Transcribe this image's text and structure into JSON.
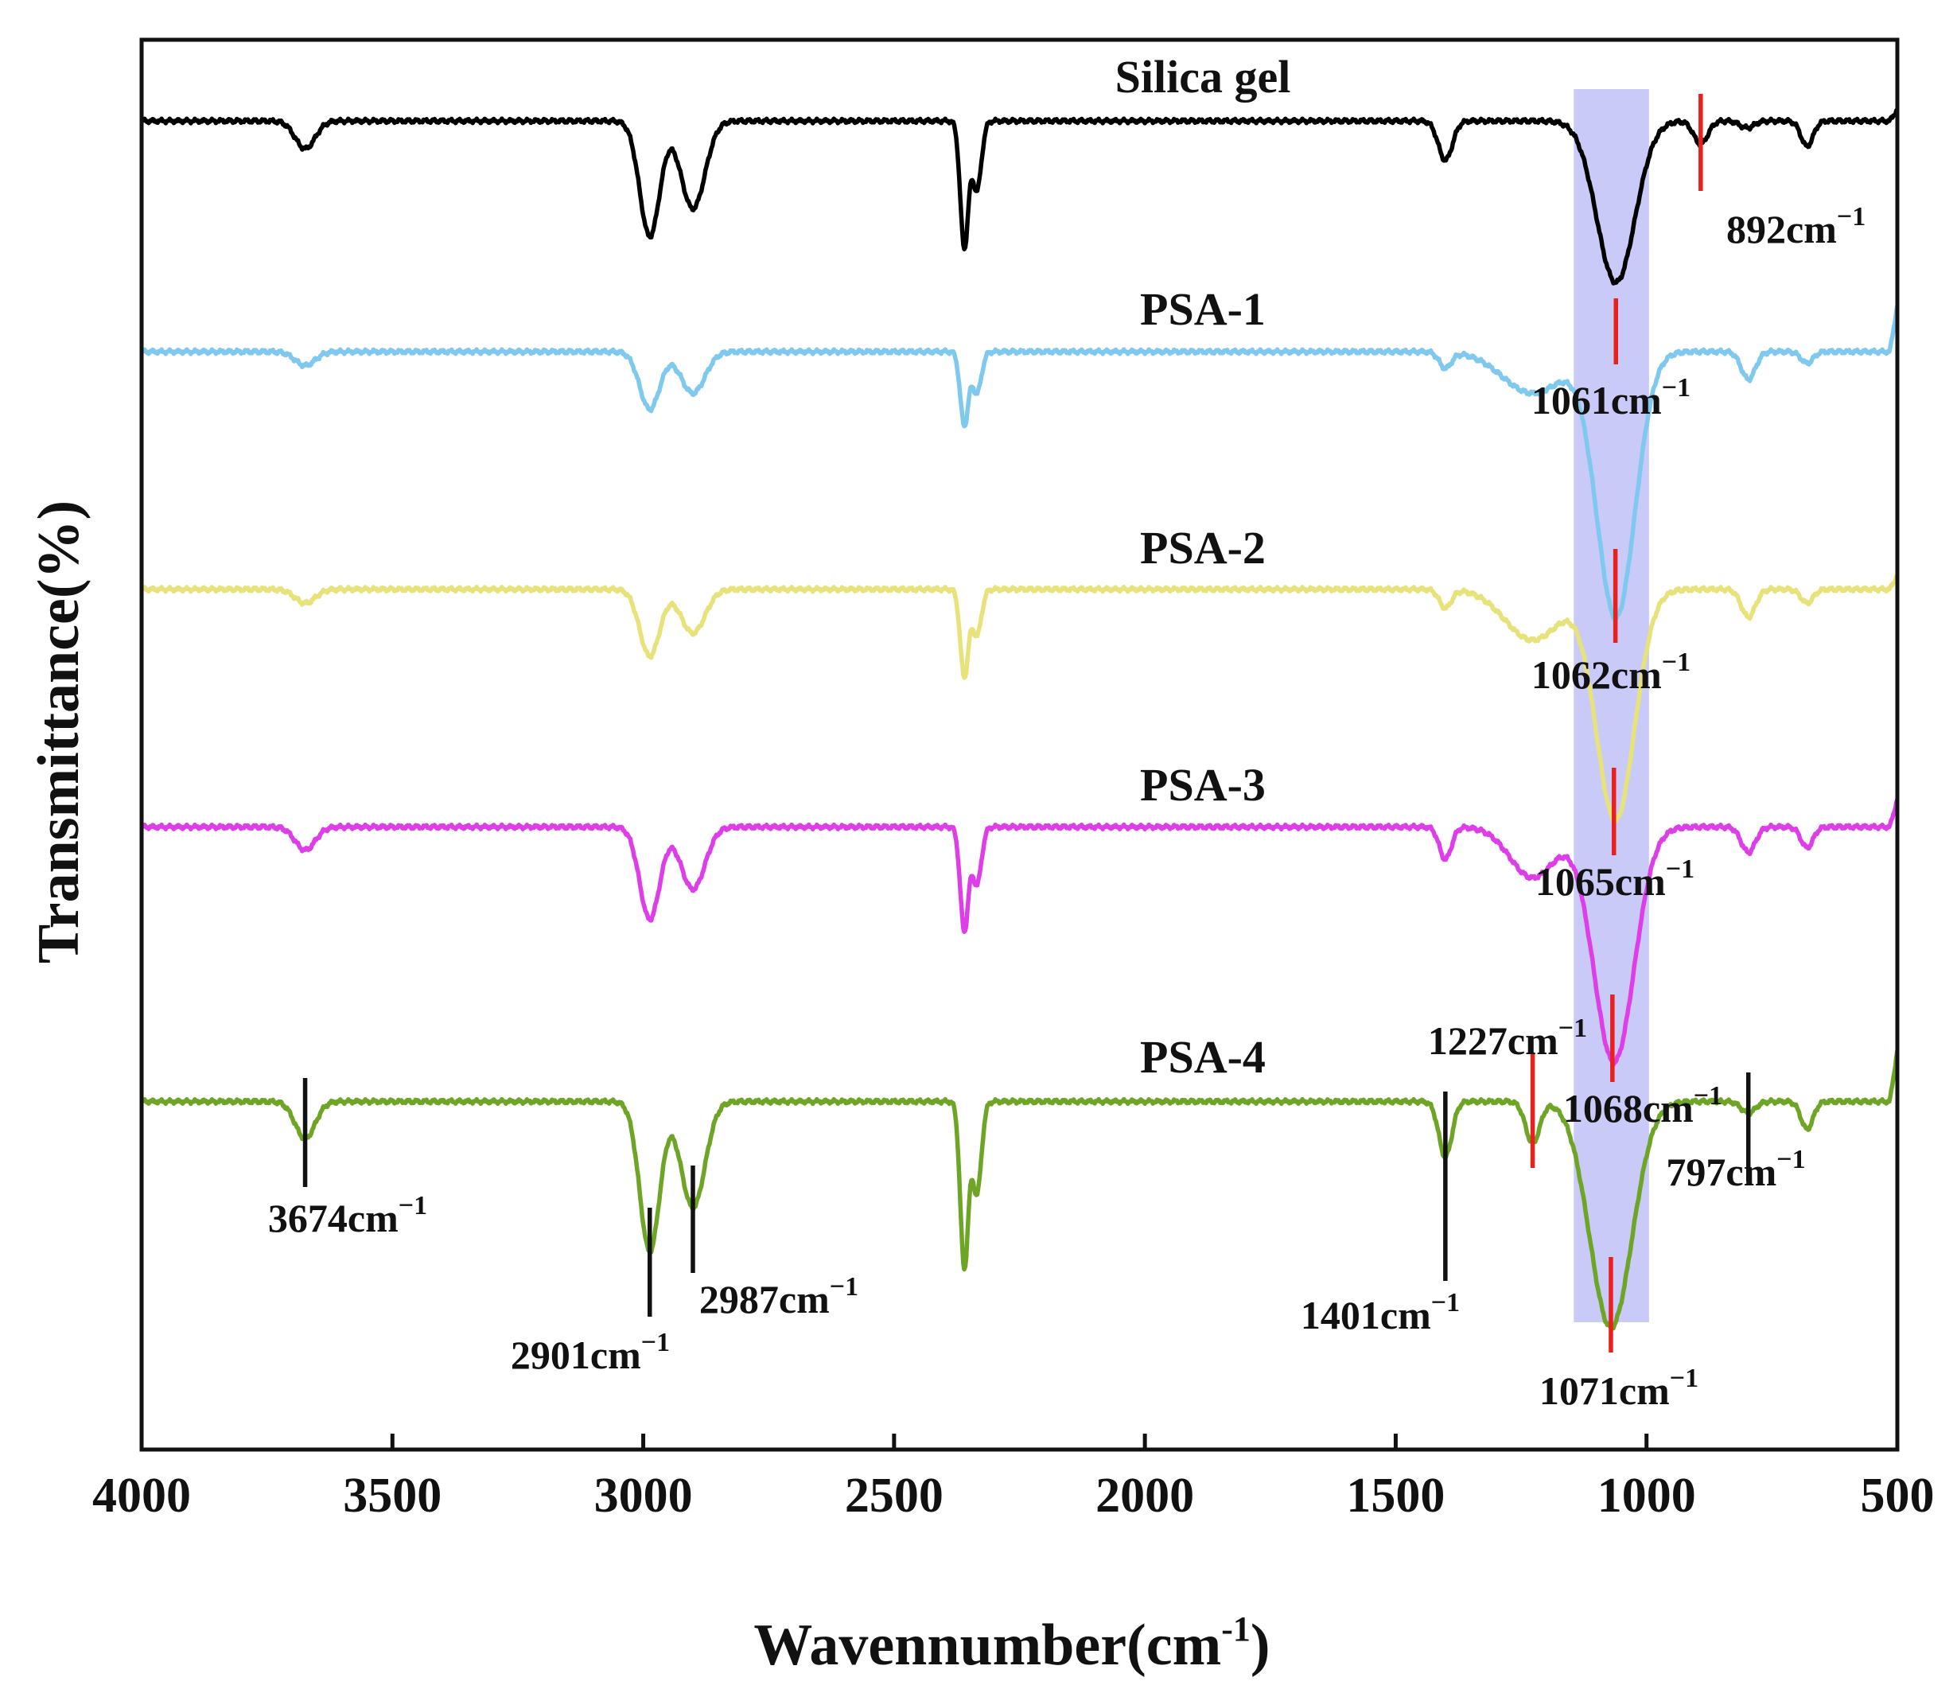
{
  "chart_data": {
    "type": "line",
    "title": "",
    "xlabel": "Wavennumber(cm",
    "xlabel_sup": "-1",
    "xlabel_close": ")",
    "ylabel": "Transmittance(%)",
    "xlim": [
      4000,
      500
    ],
    "x_reversed": true,
    "x_ticks": [
      4000,
      3500,
      3000,
      2500,
      2000,
      1500,
      1000,
      500
    ],
    "y_ticks_shown": false,
    "grid": false,
    "highlight_band": {
      "from": 1145,
      "to": 995,
      "color": "#8080ee"
    },
    "series_offsets_note": "Curves are vertically stacked (offset) for clarity; values are relative transmittance.",
    "series": [
      {
        "name": "Silica gel",
        "color": "#000000",
        "baseline": 0,
        "sharp_end_spike": 0.05,
        "bands": [
          {
            "center": 3674,
            "depth": 0.12,
            "width": 20
          },
          {
            "center": 2987,
            "depth": 0.5,
            "width": 20
          },
          {
            "center": 2901,
            "depth": 0.38,
            "width": 24
          },
          {
            "center": 2360,
            "depth": 0.55,
            "width": 8
          },
          {
            "center": 2335,
            "depth": 0.3,
            "width": 9
          },
          {
            "center": 1401,
            "depth": 0.17,
            "width": 14
          },
          {
            "center": 1061,
            "depth": 0.7,
            "width": 38
          },
          {
            "center": 892,
            "depth": 0.1,
            "width": 14
          },
          {
            "center": 800,
            "depth": 0.03,
            "width": 14
          },
          {
            "center": 680,
            "depth": 0.11,
            "width": 12
          }
        ]
      },
      {
        "name": "PSA-1",
        "color": "#7fc8ee",
        "baseline": -1,
        "sharp_end_spike": 0.2,
        "bands": [
          {
            "center": 3674,
            "depth": 0.06,
            "width": 20
          },
          {
            "center": 2987,
            "depth": 0.25,
            "width": 20
          },
          {
            "center": 2901,
            "depth": 0.18,
            "width": 24
          },
          {
            "center": 2360,
            "depth": 0.32,
            "width": 8
          },
          {
            "center": 2335,
            "depth": 0.18,
            "width": 9
          },
          {
            "center": 1401,
            "depth": 0.07,
            "width": 12
          },
          {
            "center": 1227,
            "depth": 0.18,
            "width": 60
          },
          {
            "center": 1061,
            "depth": 1.15,
            "width": 38
          },
          {
            "center": 797,
            "depth": 0.12,
            "width": 14
          },
          {
            "center": 680,
            "depth": 0.05,
            "width": 12
          }
        ]
      },
      {
        "name": "PSA-2",
        "color": "#e8e27a",
        "baseline": -2.03,
        "sharp_end_spike": 0.06,
        "bands": [
          {
            "center": 3674,
            "depth": 0.06,
            "width": 20
          },
          {
            "center": 2987,
            "depth": 0.29,
            "width": 20
          },
          {
            "center": 2901,
            "depth": 0.19,
            "width": 24
          },
          {
            "center": 2360,
            "depth": 0.38,
            "width": 8
          },
          {
            "center": 2335,
            "depth": 0.2,
            "width": 9
          },
          {
            "center": 1401,
            "depth": 0.08,
            "width": 12
          },
          {
            "center": 1227,
            "depth": 0.22,
            "width": 55
          },
          {
            "center": 1062,
            "depth": 1.0,
            "width": 38
          },
          {
            "center": 797,
            "depth": 0.12,
            "width": 14
          },
          {
            "center": 680,
            "depth": 0.06,
            "width": 12
          }
        ]
      },
      {
        "name": "PSA-3",
        "color": "#dd3ee8",
        "baseline": -3.06,
        "sharp_end_spike": 0.12,
        "bands": [
          {
            "center": 3674,
            "depth": 0.1,
            "width": 20
          },
          {
            "center": 2987,
            "depth": 0.4,
            "width": 20
          },
          {
            "center": 2901,
            "depth": 0.27,
            "width": 24
          },
          {
            "center": 2360,
            "depth": 0.45,
            "width": 8
          },
          {
            "center": 2335,
            "depth": 0.25,
            "width": 9
          },
          {
            "center": 1401,
            "depth": 0.14,
            "width": 12
          },
          {
            "center": 1227,
            "depth": 0.22,
            "width": 45
          },
          {
            "center": 1065,
            "depth": 1.02,
            "width": 40
          },
          {
            "center": 797,
            "depth": 0.11,
            "width": 14
          },
          {
            "center": 680,
            "depth": 0.09,
            "width": 12
          }
        ]
      },
      {
        "name": "PSA-4",
        "color": "#6fa527",
        "baseline": -4.25,
        "sharp_end_spike": 0.22,
        "bands": [
          {
            "center": 3674,
            "depth": 0.16,
            "width": 20
          },
          {
            "center": 2987,
            "depth": 0.65,
            "width": 20
          },
          {
            "center": 2901,
            "depth": 0.46,
            "width": 24
          },
          {
            "center": 2360,
            "depth": 0.72,
            "width": 8
          },
          {
            "center": 2335,
            "depth": 0.4,
            "width": 9
          },
          {
            "center": 1401,
            "depth": 0.24,
            "width": 13
          },
          {
            "center": 1227,
            "depth": 0.18,
            "width": 14
          },
          {
            "center": 1071,
            "depth": 0.98,
            "width": 42
          },
          {
            "center": 797,
            "depth": 0.05,
            "width": 14
          },
          {
            "center": 680,
            "depth": 0.12,
            "width": 12
          }
        ]
      }
    ],
    "annotations": [
      {
        "text": "892cm",
        "sup": "−1",
        "x": 892,
        "series": 0,
        "color": "#e8201e"
      },
      {
        "text": "1061cm",
        "sup": "−1",
        "x": 1061,
        "series": 1,
        "color": "#e8201e"
      },
      {
        "text": "1062cm",
        "sup": "−1",
        "x": 1062,
        "series": 2,
        "color": "#e8201e"
      },
      {
        "text": "1065cm",
        "sup": "−1",
        "x": 1065,
        "series": 3,
        "color": "#e8201e"
      },
      {
        "text": "1068cm",
        "sup": "−1",
        "x": 1068,
        "series": 3,
        "color": "#e8201e"
      },
      {
        "text": "1227cm",
        "sup": "−1",
        "x": 1227,
        "series": 4,
        "color": "#e8201e"
      },
      {
        "text": "1071cm",
        "sup": "−1",
        "x": 1071,
        "series": 4,
        "color": "#e8201e"
      },
      {
        "text": "3674cm",
        "sup": "−1",
        "x": 3674,
        "series": 4,
        "color": "#111111"
      },
      {
        "text": "2901cm",
        "sup": "−1",
        "x": 2987,
        "series": 4,
        "color": "#111111"
      },
      {
        "text": "2987cm",
        "sup": "−1",
        "x": 2901,
        "series": 4,
        "color": "#111111"
      },
      {
        "text": "1401cm",
        "sup": "−1",
        "x": 1401,
        "series": 4,
        "color": "#111111"
      },
      {
        "text": "797cm",
        "sup": "−1",
        "x": 797,
        "series": 4,
        "color": "#111111"
      }
    ]
  }
}
